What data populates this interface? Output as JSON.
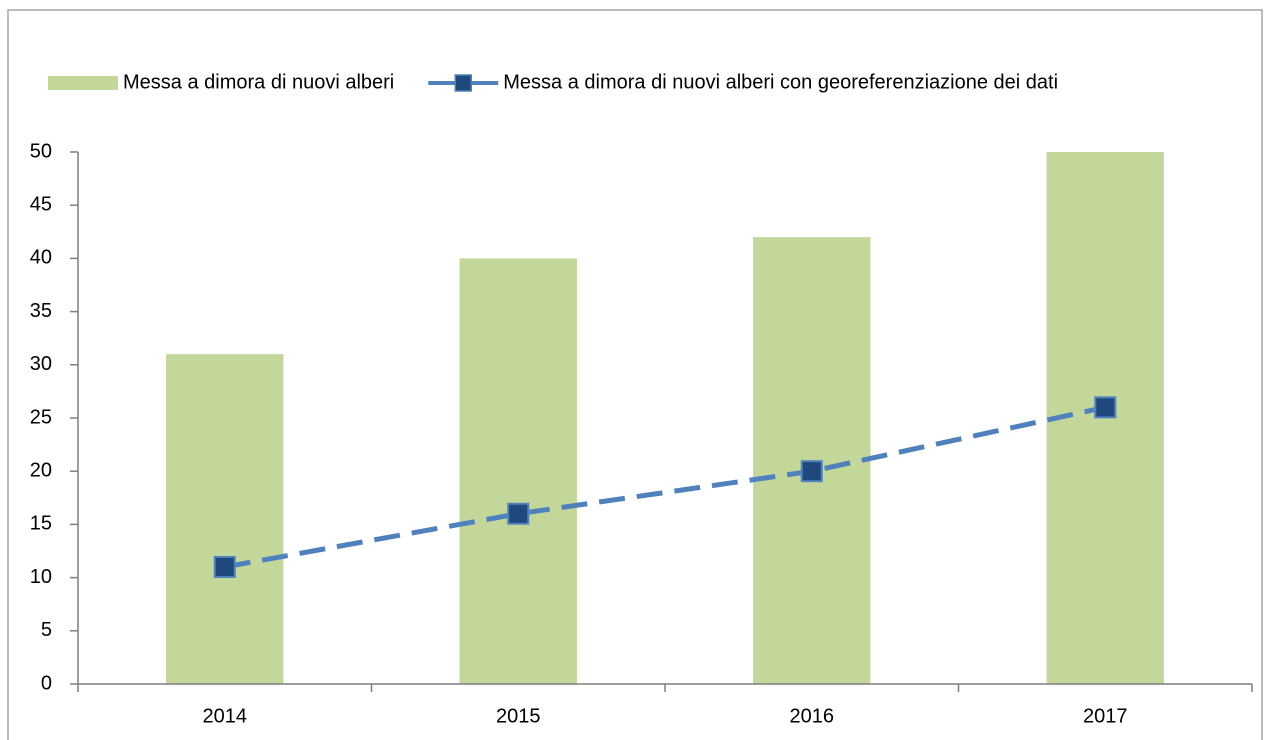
{
  "chart_data": {
    "type": "bar",
    "categories": [
      "2014",
      "2015",
      "2016",
      "2017"
    ],
    "series": [
      {
        "name": "Messa a dimora di nuovi alberi",
        "type": "bar",
        "color": "#c4d79b",
        "values": [
          31,
          40,
          42,
          50
        ]
      },
      {
        "name": "Messa a dimora di nuovi alberi con georeferenziazione dei dati",
        "type": "line",
        "color": "#4f81bd",
        "marker_color": "#1f497d",
        "values": [
          11,
          16,
          20,
          26
        ]
      }
    ],
    "ylim": [
      0,
      50
    ],
    "yticks": [
      0,
      5,
      10,
      15,
      20,
      25,
      30,
      35,
      40,
      45,
      50
    ],
    "grid": false,
    "legend": "top"
  }
}
